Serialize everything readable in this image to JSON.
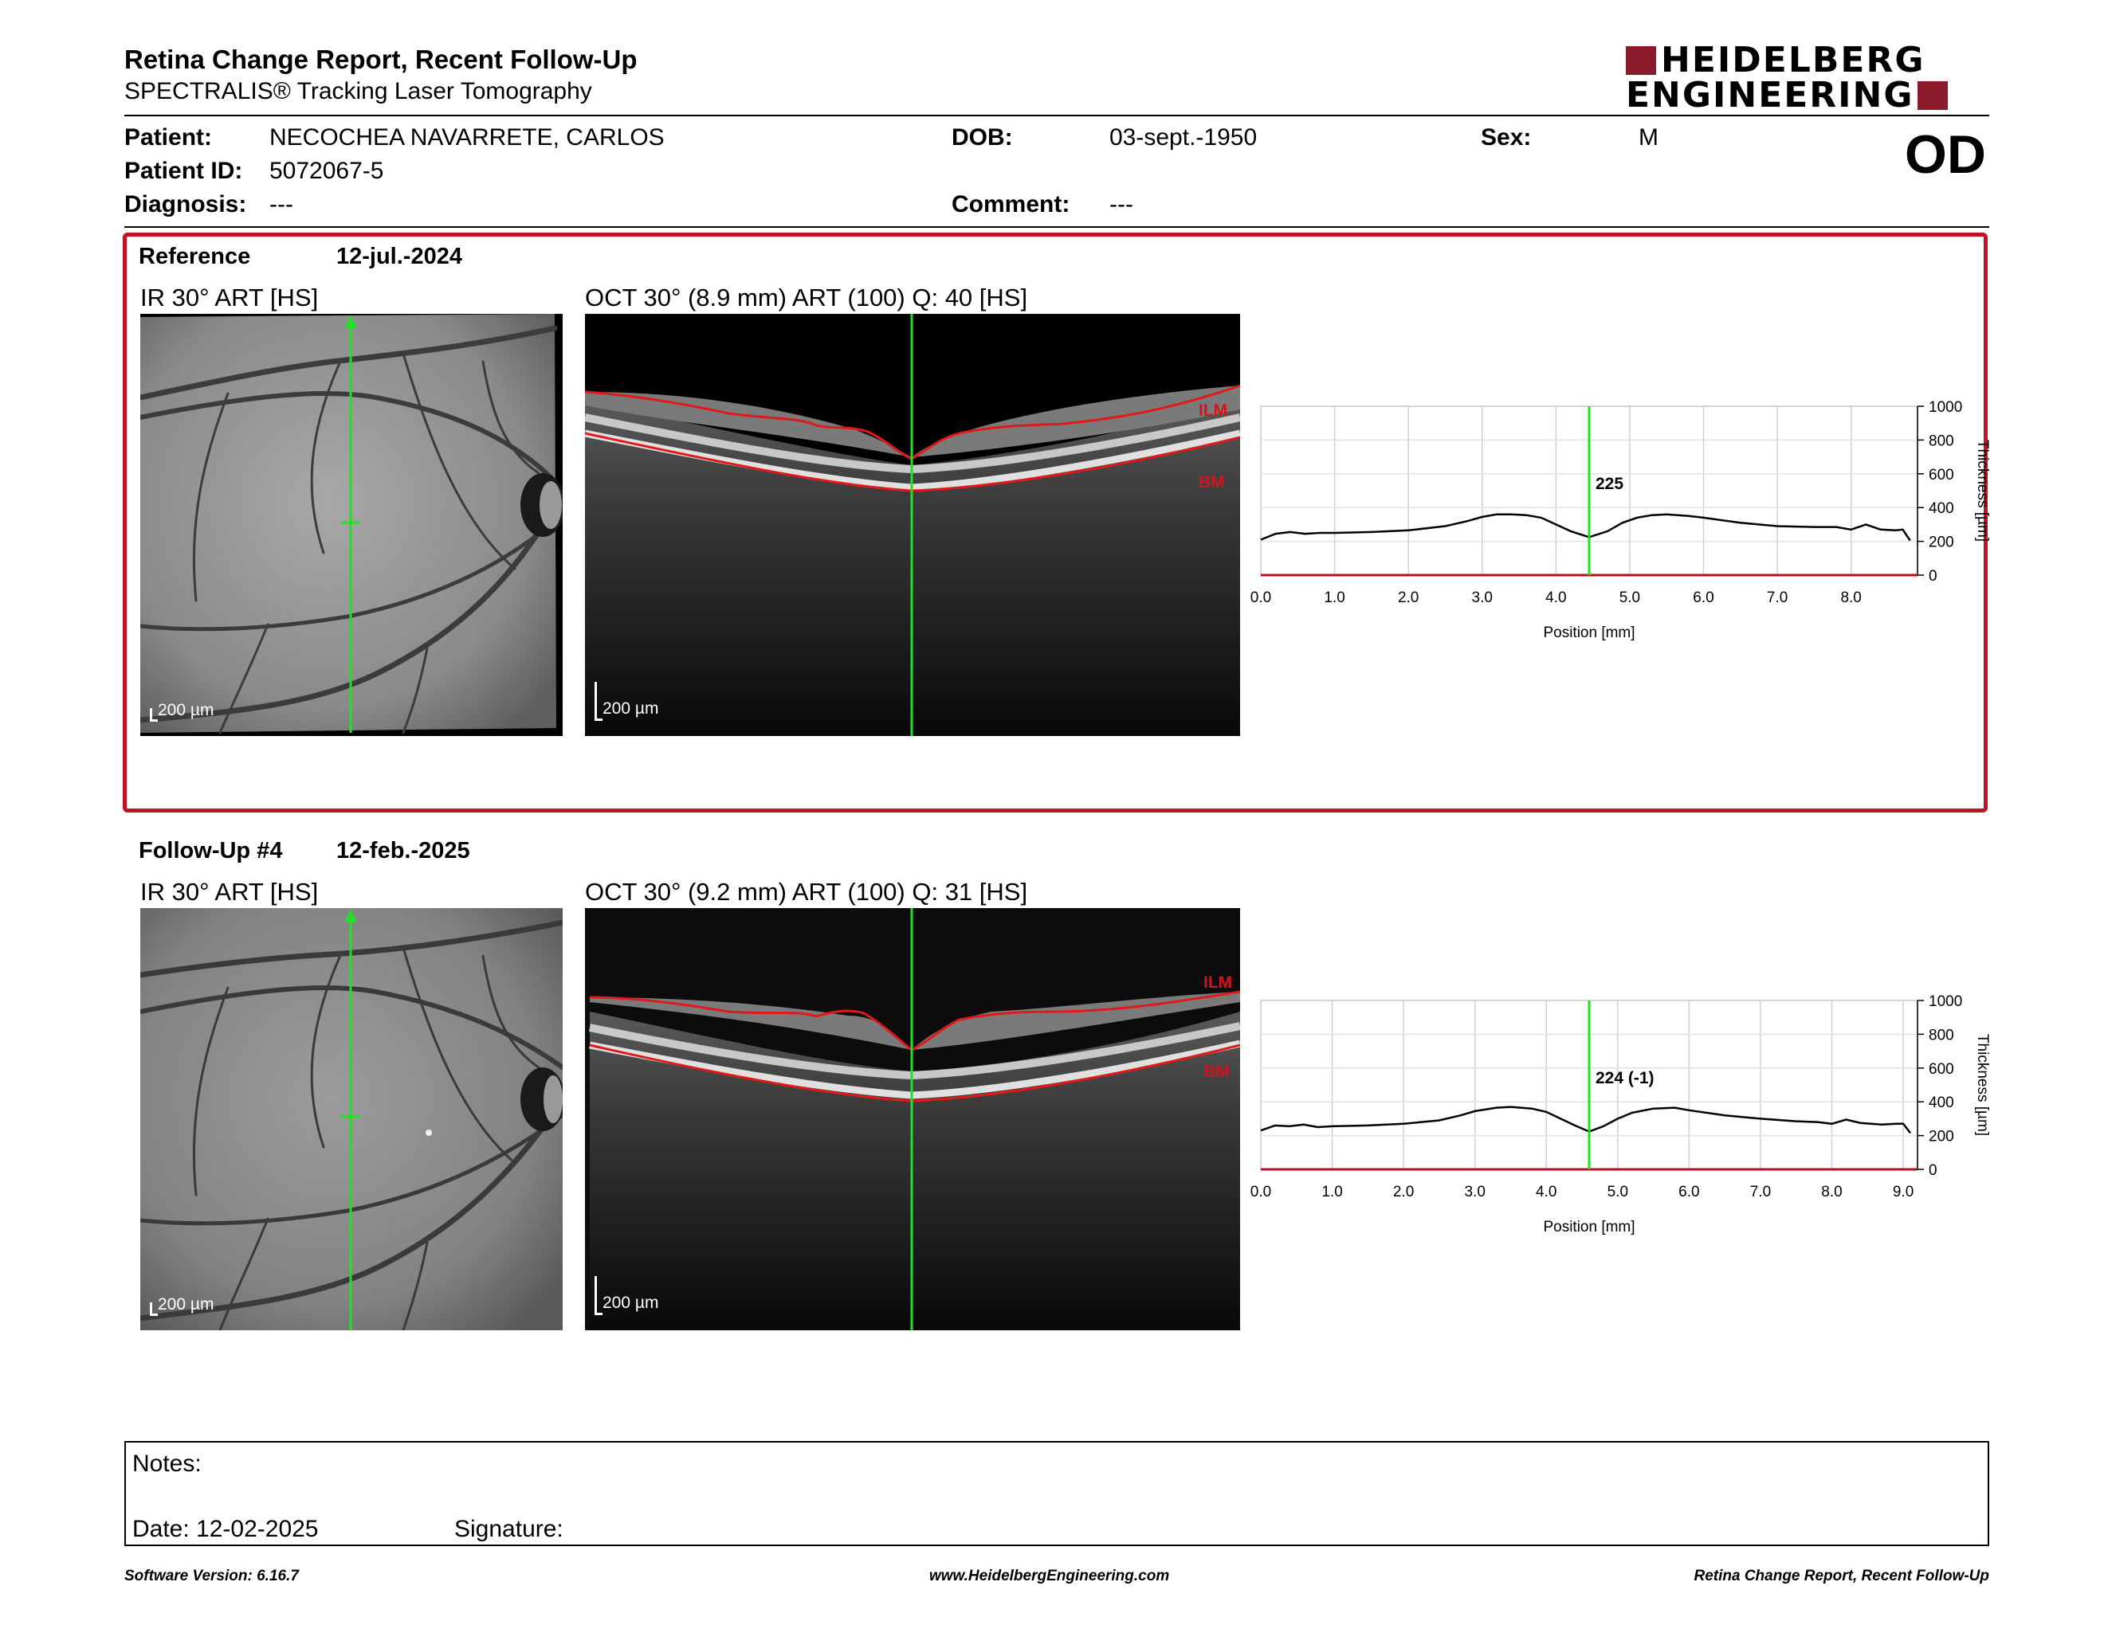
{
  "header": {
    "title": "Retina Change Report, Recent Follow-Up",
    "subtitle": "SPECTRALIS® Tracking Laser Tomography",
    "logo_line1": "HEIDELBERG",
    "logo_line2": "ENGINEERING",
    "brand_color": "#8b1a2b"
  },
  "patient": {
    "patient_label": "Patient:",
    "patient_value": "NECOCHEA NAVARRETE, CARLOS",
    "id_label": "Patient ID:",
    "id_value": "5072067-5",
    "diagnosis_label": "Diagnosis:",
    "diagnosis_value": "---",
    "dob_label": "DOB:",
    "dob_value": "03-sept.-1950",
    "comment_label": "Comment:",
    "comment_value": "---",
    "sex_label": "Sex:",
    "sex_value": "M",
    "eye": "OD"
  },
  "reference": {
    "label": "Reference",
    "date": "12-jul.-2024",
    "ir_caption": "IR 30° ART [HS]",
    "oct_caption": "OCT 30° (8.9 mm) ART (100) Q: 40 [HS]",
    "scale": "200 µm",
    "ilm": "ILM",
    "bm": "BM",
    "box_color": "#c1121f"
  },
  "followup": {
    "label": "Follow-Up #4",
    "date": "12-feb.-2025",
    "ir_caption": "IR 30° ART [HS]",
    "oct_caption": "OCT 30° (9.2 mm) ART (100) Q: 31 [HS]",
    "scale": "200 µm",
    "ilm": "ILM",
    "bm": "BM"
  },
  "chart_data": [
    {
      "type": "line",
      "xlabel": "Position [mm]",
      "ylabel": "Thickness [µm]",
      "xlim": [
        0,
        8.9
      ],
      "ylim": [
        0,
        1000
      ],
      "xticks": [
        "0.0",
        "1.0",
        "2.0",
        "3.0",
        "4.0",
        "5.0",
        "6.0",
        "7.0",
        "8.0"
      ],
      "xtick_values": [
        0,
        1,
        2,
        3,
        4,
        5,
        6,
        7,
        8
      ],
      "yticks": [
        "0",
        "200",
        "400",
        "600",
        "800",
        "1000"
      ],
      "ytick_values": [
        0,
        200,
        400,
        600,
        800,
        1000
      ],
      "marker_x": 4.45,
      "marker_label": "225",
      "grid": true,
      "series": [
        {
          "x": [
            0.0,
            0.2,
            0.4,
            0.6,
            0.8,
            1.0,
            1.5,
            2.0,
            2.5,
            2.8,
            3.0,
            3.2,
            3.4,
            3.6,
            3.8,
            4.0,
            4.2,
            4.45,
            4.7,
            4.9,
            5.1,
            5.3,
            5.5,
            5.8,
            6.0,
            6.5,
            7.0,
            7.5,
            7.8,
            8.0,
            8.2,
            8.4,
            8.6,
            8.7,
            8.8
          ],
          "y": [
            210,
            245,
            255,
            245,
            250,
            250,
            255,
            265,
            290,
            320,
            345,
            360,
            360,
            355,
            340,
            300,
            260,
            225,
            260,
            310,
            340,
            355,
            360,
            350,
            340,
            310,
            290,
            285,
            285,
            270,
            300,
            270,
            265,
            270,
            205
          ]
        }
      ]
    },
    {
      "type": "line",
      "xlabel": "Position [mm]",
      "ylabel": "Thickness [µm]",
      "xlim": [
        0,
        9.2
      ],
      "ylim": [
        0,
        1000
      ],
      "xticks": [
        "0.0",
        "1.0",
        "2.0",
        "3.0",
        "4.0",
        "5.0",
        "6.0",
        "7.0",
        "8.0",
        "9.0"
      ],
      "xtick_values": [
        0,
        1,
        2,
        3,
        4,
        5,
        6,
        7,
        8,
        9
      ],
      "yticks": [
        "0",
        "200",
        "400",
        "600",
        "800",
        "1000"
      ],
      "ytick_values": [
        0,
        200,
        400,
        600,
        800,
        1000
      ],
      "marker_x": 4.6,
      "marker_label": "224 (-1)",
      "grid": true,
      "series": [
        {
          "x": [
            0.0,
            0.2,
            0.4,
            0.6,
            0.8,
            1.0,
            1.5,
            2.0,
            2.5,
            2.8,
            3.0,
            3.3,
            3.5,
            3.8,
            4.0,
            4.2,
            4.4,
            4.6,
            4.8,
            5.0,
            5.2,
            5.5,
            5.8,
            6.0,
            6.5,
            7.0,
            7.5,
            7.8,
            8.0,
            8.2,
            8.4,
            8.7,
            8.9,
            9.0,
            9.1
          ],
          "y": [
            230,
            260,
            255,
            265,
            250,
            255,
            260,
            270,
            290,
            320,
            345,
            365,
            370,
            360,
            340,
            300,
            260,
            224,
            255,
            300,
            335,
            360,
            365,
            350,
            320,
            300,
            285,
            280,
            270,
            295,
            275,
            265,
            270,
            270,
            215
          ]
        }
      ]
    }
  ],
  "notes": {
    "notes_label": "Notes:",
    "date_label": "Date: 12-02-2025",
    "signature_label": "Signature:"
  },
  "footer": {
    "software": "Software Version: 6.16.7",
    "website": "www.HeidelbergEngineering.com",
    "report": "Retina Change Report, Recent Follow-Up"
  }
}
